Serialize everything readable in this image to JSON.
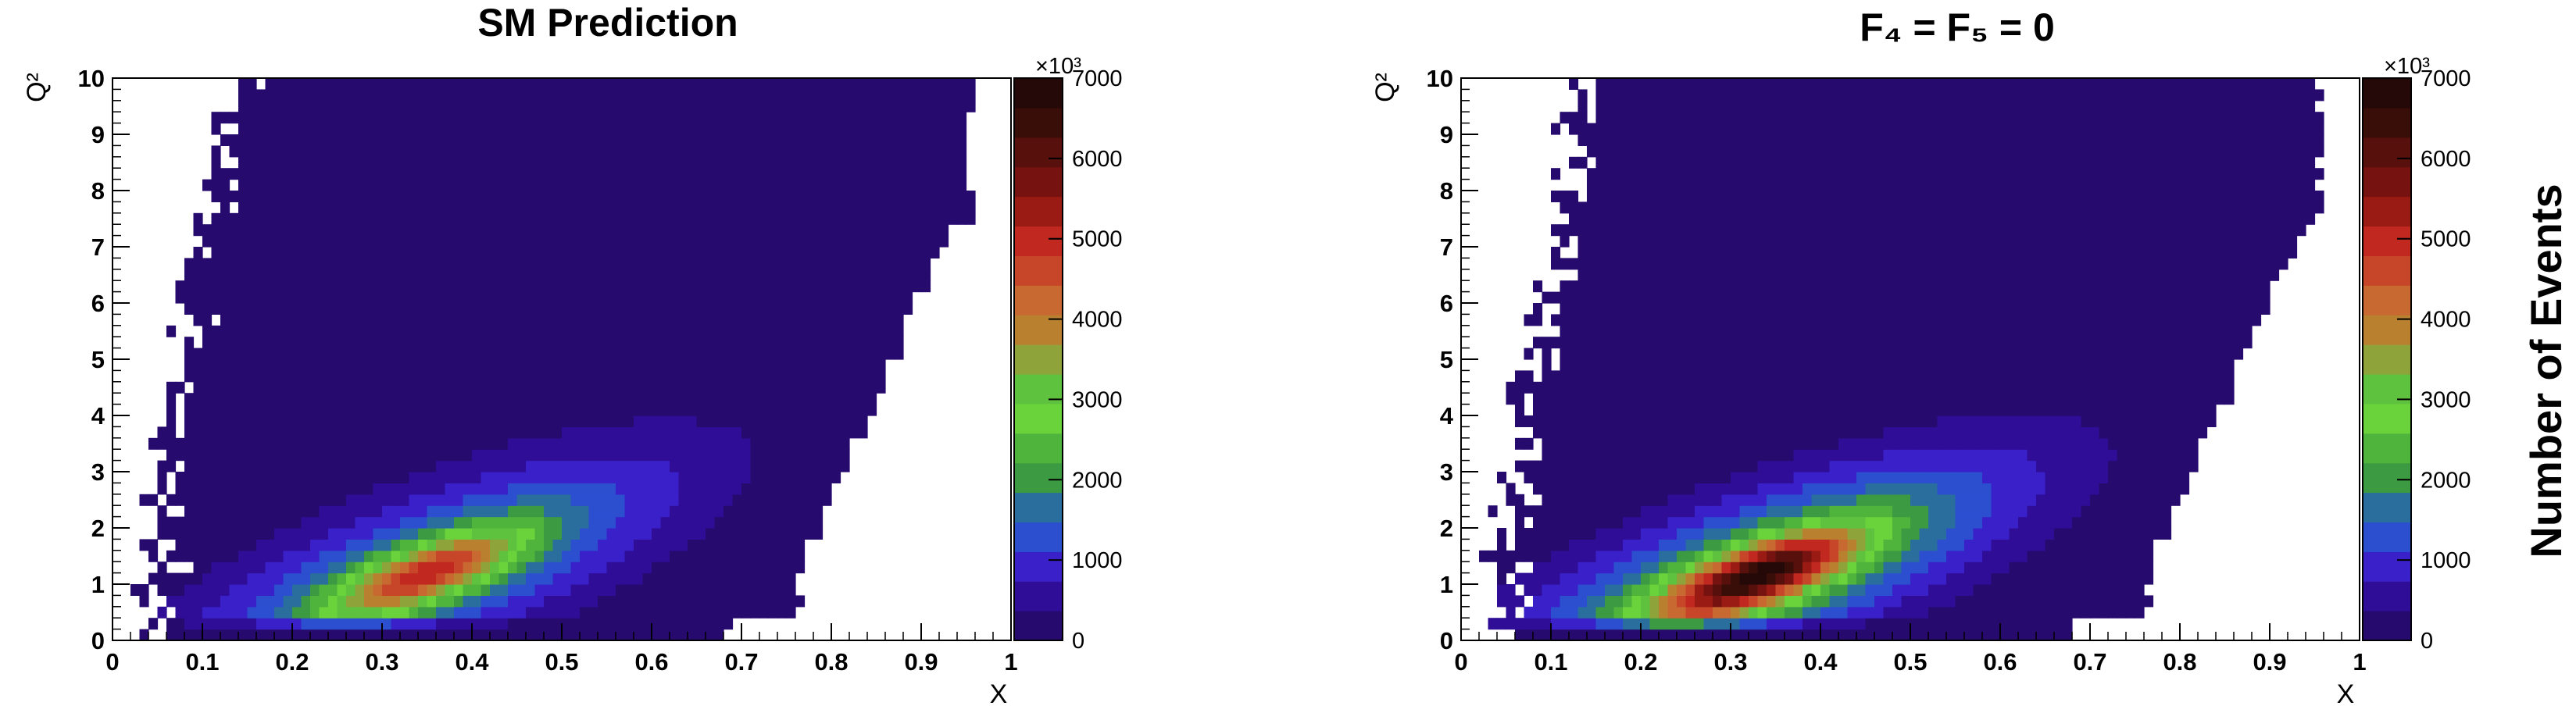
{
  "chart_data": [
    {
      "type": "heatmap",
      "title": "SM Prediction",
      "xlabel": "X",
      "ylabel": "Q²",
      "xlim": [
        0,
        1
      ],
      "ylim": [
        0,
        10
      ],
      "x_ticks": [
        "0",
        "0.1",
        "0.2",
        "0.3",
        "0.4",
        "0.5",
        "0.6",
        "0.7",
        "0.8",
        "0.9",
        "1"
      ],
      "y_ticks": [
        "0",
        "1",
        "2",
        "3",
        "4",
        "5",
        "6",
        "7",
        "8",
        "9",
        "10"
      ],
      "colorbar": {
        "range": [
          0,
          7000
        ],
        "ticks": [
          "0",
          "1000",
          "2000",
          "3000",
          "4000",
          "5000",
          "6000",
          "7000"
        ],
        "exponent": "×10³"
      },
      "peak": {
        "x": 0.35,
        "y": 1.2,
        "value": 5100
      },
      "core_width": {
        "x": 0.075,
        "y": 0.55
      },
      "halo_width": {
        "x": 0.2,
        "y": 1.5
      },
      "correlation": 0.74,
      "populated_region": "0.05 < x < 0.97, 0 < Q² < 10"
    },
    {
      "type": "heatmap",
      "title": "F₄ = F₅ = 0",
      "xlabel": "X",
      "ylabel": "Q²",
      "xlim": [
        0,
        1
      ],
      "ylim": [
        0,
        10
      ],
      "x_ticks": [
        "0",
        "0.1",
        "0.2",
        "0.3",
        "0.4",
        "0.5",
        "0.6",
        "0.7",
        "0.8",
        "0.9",
        "1"
      ],
      "y_ticks": [
        "0",
        "1",
        "2",
        "3",
        "4",
        "5",
        "6",
        "7",
        "8",
        "9",
        "10"
      ],
      "colorbar": {
        "range": [
          0,
          7000
        ],
        "ticks": [
          "0",
          "1000",
          "2000",
          "3000",
          "4000",
          "5000",
          "6000",
          "7000"
        ],
        "exponent": "×10³"
      },
      "peak": {
        "x": 0.33,
        "y": 1.15,
        "value": 6900
      },
      "core_width": {
        "x": 0.075,
        "y": 0.55
      },
      "halo_width": {
        "x": 0.2,
        "y": 1.45
      },
      "correlation": 0.74,
      "populated_region": "0.04 < x < 0.97, 0 < Q² < 10"
    }
  ],
  "shared": {
    "z_axis_label": "Number of Events",
    "palette": [
      "#270a6e",
      "#2f0d96",
      "#3a20c9",
      "#2b4fcf",
      "#2a6e9e",
      "#3c9a42",
      "#4fb43b",
      "#6ad33c",
      "#5fc23f",
      "#8ea33a",
      "#b9812f",
      "#c76930",
      "#c74529",
      "#c1281f",
      "#9a1b14",
      "#761310",
      "#57100c",
      "#3a0e08",
      "#240908"
    ]
  }
}
